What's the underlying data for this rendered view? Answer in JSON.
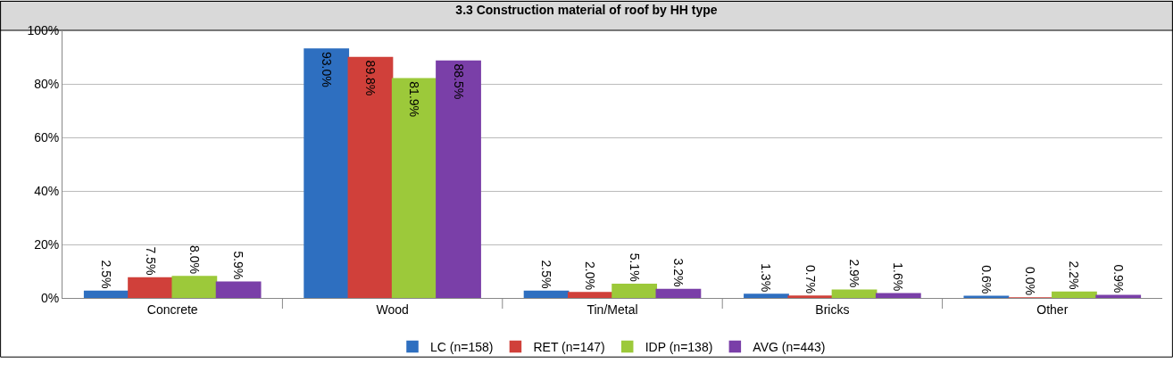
{
  "chart_data": {
    "type": "bar",
    "title": "3.3 Construction material of roof by HH type",
    "categories": [
      "Concrete",
      "Wood",
      "Tin/Metal",
      "Bricks",
      "Other"
    ],
    "series": [
      {
        "name": "LC (n=158)",
        "color": "#2e6fc0",
        "values": [
          2.5,
          93.0,
          2.5,
          1.3,
          0.6
        ],
        "value_labels": [
          "2.5%",
          "93.0%",
          "2.5%",
          "1.3%",
          "0.6%"
        ]
      },
      {
        "name": "RET (n=147)",
        "color": "#d0403a",
        "values": [
          7.5,
          89.8,
          2.0,
          0.7,
          0.0
        ],
        "value_labels": [
          "7.5%",
          "89.8%",
          "2.0%",
          "0.7%",
          "0.0%"
        ]
      },
      {
        "name": "IDP (n=138)",
        "color": "#9cc93a",
        "values": [
          8.0,
          81.9,
          5.1,
          2.9,
          2.2
        ],
        "value_labels": [
          "8.0%",
          "81.9%",
          "5.1%",
          "2.9%",
          "2.2%"
        ]
      },
      {
        "name": "AVG (n=443)",
        "color": "#7a3fa8",
        "values": [
          5.9,
          88.5,
          3.2,
          1.6,
          0.9
        ],
        "value_labels": [
          "5.9%",
          "88.5%",
          "3.2%",
          "1.6%",
          "0.9%"
        ]
      }
    ],
    "ylim": [
      0,
      100
    ],
    "yticks": [
      {
        "value": 0,
        "label": "0%"
      },
      {
        "value": 20,
        "label": "20%"
      },
      {
        "value": 40,
        "label": "40%"
      },
      {
        "value": 60,
        "label": "60%"
      },
      {
        "value": 80,
        "label": "80%"
      },
      {
        "value": 100,
        "label": "100%"
      }
    ],
    "grid": "y",
    "legend": "bottom"
  }
}
